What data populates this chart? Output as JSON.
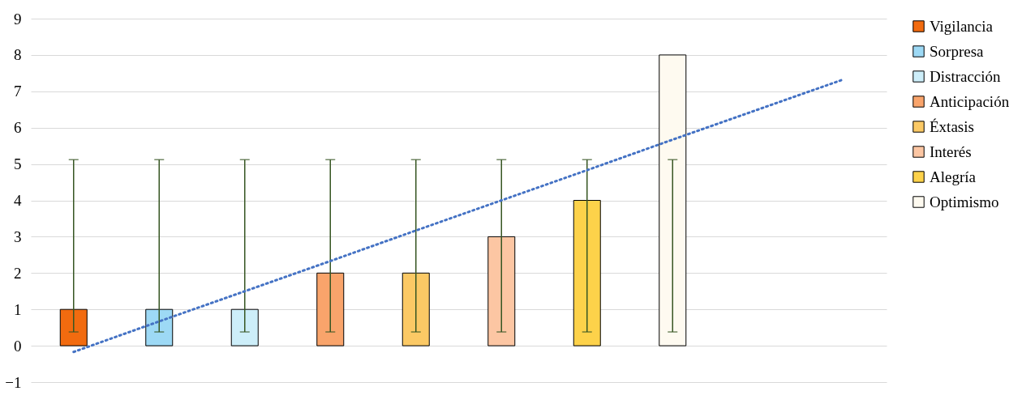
{
  "chart_data": {
    "type": "bar",
    "categories": [
      null,
      null,
      null,
      null,
      null,
      null,
      null,
      null,
      null,
      null
    ],
    "ylim": [
      -1,
      9
    ],
    "yticks": [
      -1,
      0,
      1,
      2,
      3,
      4,
      5,
      6,
      7,
      8,
      9
    ],
    "grid": "y",
    "legend": "right",
    "tick_labels": "y",
    "series": [
      {
        "name": "Vigilancia",
        "color": "#f26b0f",
        "values": [
          1,
          null,
          null,
          null,
          null,
          null,
          null,
          null,
          null,
          null
        ],
        "errors": [
          [
            0.38,
            5.12
          ],
          null,
          null,
          null,
          null,
          null,
          null,
          null,
          null,
          null
        ]
      },
      {
        "name": "Sorpresa",
        "color": "#9dd9f5",
        "values": [
          null,
          1,
          null,
          null,
          null,
          null,
          null,
          null,
          null,
          null
        ],
        "errors": [
          null,
          [
            0.38,
            5.12
          ],
          null,
          null,
          null,
          null,
          null,
          null,
          null,
          null
        ]
      },
      {
        "name": "Distracción",
        "color": "#cdeef9",
        "values": [
          null,
          null,
          1,
          null,
          null,
          null,
          null,
          null,
          null,
          null
        ],
        "errors": [
          null,
          null,
          [
            0.38,
            5.12
          ],
          null,
          null,
          null,
          null,
          null,
          null,
          null
        ]
      },
      {
        "name": "Anticipación",
        "color": "#f9a46b",
        "values": [
          null,
          null,
          null,
          2,
          null,
          null,
          null,
          null,
          null,
          null
        ],
        "errors": [
          null,
          null,
          null,
          [
            0.38,
            5.12
          ],
          null,
          null,
          null,
          null,
          null,
          null
        ]
      },
      {
        "name": "Éxtasis",
        "color": "#fbc965",
        "values": [
          null,
          null,
          null,
          null,
          2,
          null,
          null,
          null,
          null,
          null
        ],
        "errors": [
          null,
          null,
          null,
          null,
          [
            0.38,
            5.12
          ],
          null,
          null,
          null,
          null,
          null
        ]
      },
      {
        "name": "Interés",
        "color": "#fcc6a3",
        "values": [
          null,
          null,
          null,
          null,
          null,
          3,
          null,
          null,
          null,
          null
        ],
        "errors": [
          null,
          null,
          null,
          null,
          null,
          [
            0.38,
            5.12
          ],
          null,
          null,
          null,
          null
        ]
      },
      {
        "name": "Alegría",
        "color": "#fdd24a",
        "values": [
          null,
          null,
          null,
          null,
          null,
          null,
          4,
          null,
          null,
          null
        ],
        "errors": [
          null,
          null,
          null,
          null,
          null,
          null,
          [
            0.38,
            5.12
          ],
          null,
          null,
          null
        ]
      },
      {
        "name": "Optimismo",
        "color": "#fefaf0",
        "values": [
          null,
          null,
          null,
          null,
          null,
          null,
          null,
          8,
          null,
          null
        ],
        "errors": [
          null,
          null,
          null,
          null,
          null,
          null,
          null,
          [
            0.38,
            5.12
          ],
          null,
          null
        ]
      },
      {
        "type": "line",
        "color": "#4472c4",
        "line_style": "dotted",
        "marker": "none",
        "values": [
          -0.17,
          0.67,
          1.5,
          2.33,
          3.17,
          4.0,
          4.83,
          5.67,
          6.5,
          7.33
        ]
      }
    ]
  }
}
